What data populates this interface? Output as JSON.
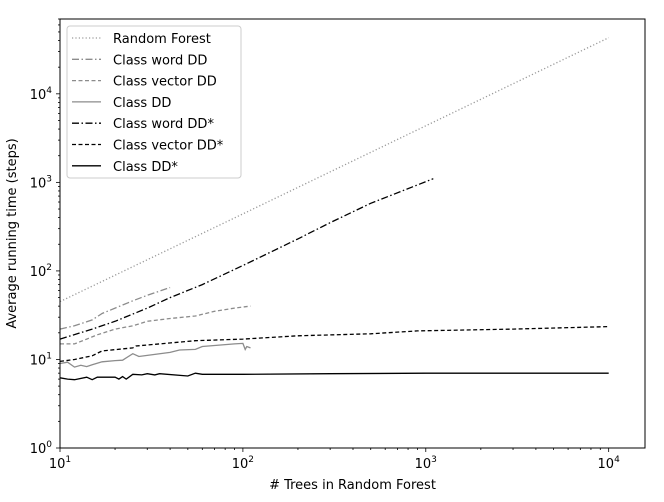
{
  "chart_data": {
    "type": "line",
    "title": "",
    "xlabel": "# Trees in Random Forest",
    "ylabel": "Average running time (steps)",
    "xscale": "log",
    "yscale": "log",
    "xlim": [
      10,
      15800
    ],
    "ylim": [
      1,
      70000
    ],
    "xticks": [
      {
        "value": 10,
        "base": "10",
        "exp": "1"
      },
      {
        "value": 100,
        "base": "10",
        "exp": "2"
      },
      {
        "value": 1000,
        "base": "10",
        "exp": "3"
      },
      {
        "value": 10000,
        "base": "10",
        "exp": "4"
      }
    ],
    "yticks": [
      {
        "value": 1,
        "base": "10",
        "exp": "0"
      },
      {
        "value": 10,
        "base": "10",
        "exp": "1"
      },
      {
        "value": 100,
        "base": "10",
        "exp": "2"
      },
      {
        "value": 1000,
        "base": "10",
        "exp": "3"
      },
      {
        "value": 10000,
        "base": "10",
        "exp": "4"
      }
    ],
    "grid": false,
    "legend_position": "top-left",
    "series": [
      {
        "name": "Random Forest",
        "color": "#999999",
        "style": "dotted",
        "x": [
          10,
          100,
          1000,
          10000
        ],
        "y": [
          45,
          440,
          4350,
          43000
        ]
      },
      {
        "name": "Class word DD",
        "color": "#8c8c8c",
        "style": "dashdot",
        "x": [
          10,
          12,
          15,
          17,
          20,
          25,
          30,
          40
        ],
        "y": [
          22,
          24,
          28,
          33,
          38,
          46,
          53,
          65
        ]
      },
      {
        "name": "Class vector DD",
        "color": "#8c8c8c",
        "style": "dashed",
        "x": [
          10,
          12,
          14,
          16,
          20,
          25,
          30,
          40,
          55,
          70,
          90,
          110
        ],
        "y": [
          15,
          15,
          17,
          19,
          22,
          24,
          27,
          29,
          31,
          35,
          38,
          40
        ]
      },
      {
        "name": "Class DD",
        "color": "#8c8c8c",
        "style": "solid",
        "x": [
          10,
          11,
          12,
          13,
          14,
          15,
          17,
          20,
          22,
          25,
          27,
          30,
          40,
          45,
          55,
          60,
          90,
          100,
          103,
          105,
          110
        ],
        "y": [
          9,
          9.3,
          8.2,
          8.6,
          8.3,
          8.7,
          9.4,
          9.7,
          9.8,
          11.6,
          10.8,
          11.1,
          12,
          12.8,
          13,
          14,
          15,
          15.2,
          13,
          14,
          13.5
        ]
      },
      {
        "name": "Class word DD*",
        "color": "#000000",
        "style": "dashdot",
        "x": [
          10,
          15,
          20,
          30,
          40,
          60,
          100,
          200,
          300,
          500,
          1100
        ],
        "y": [
          17,
          22,
          27,
          38,
          50,
          70,
          115,
          230,
          350,
          580,
          1100
        ]
      },
      {
        "name": "Class vector DD*",
        "color": "#000000",
        "style": "dashed",
        "x": [
          10,
          12,
          15,
          17,
          25,
          26,
          35,
          55,
          100,
          200,
          500,
          900,
          3000,
          10000
        ],
        "y": [
          9.5,
          10,
          11,
          12.5,
          13.5,
          14.2,
          15,
          16.3,
          17,
          18.5,
          19.5,
          21,
          22,
          23.5
        ]
      },
      {
        "name": "Class DD*",
        "color": "#000000",
        "style": "solid",
        "x": [
          10,
          11,
          12,
          14,
          15,
          16,
          20,
          21,
          22,
          23,
          25,
          28,
          30,
          33,
          35,
          50,
          55,
          60,
          100,
          300,
          1000,
          10000
        ],
        "y": [
          6.2,
          6.0,
          5.9,
          6.3,
          5.9,
          6.3,
          6.3,
          6.0,
          6.4,
          6.0,
          6.8,
          6.7,
          6.9,
          6.7,
          6.9,
          6.5,
          7.0,
          6.8,
          6.8,
          6.9,
          7.0,
          7.0
        ]
      }
    ]
  }
}
